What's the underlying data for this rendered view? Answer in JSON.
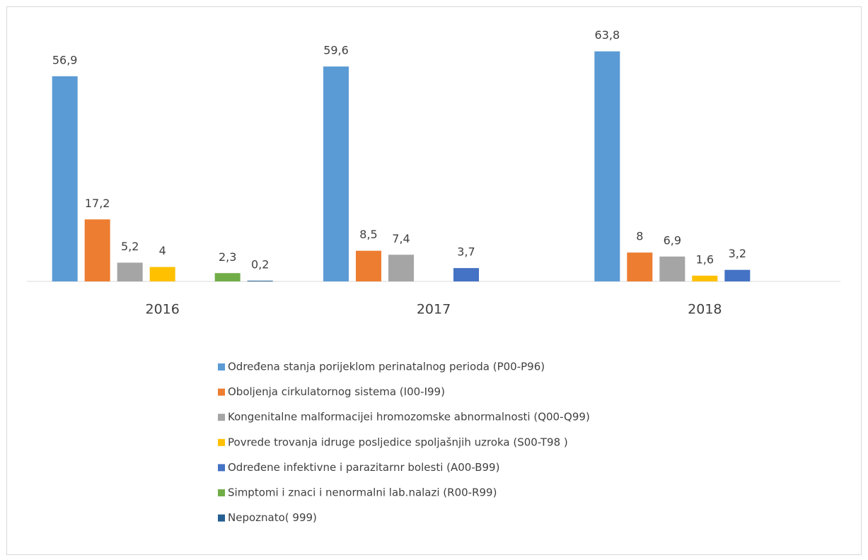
{
  "chart_data": {
    "type": "bar",
    "categories": [
      "2016",
      "2017",
      "2018"
    ],
    "series": [
      {
        "name": "Određena stanja porijeklom perinatalnog perioda  (P00-P96)",
        "color": "#5b9bd5",
        "values": [
          56.9,
          59.6,
          63.8
        ],
        "value_labels": [
          "56,9",
          "59,6",
          "63,8"
        ]
      },
      {
        "name": "Oboljenja cirkulatornog sistema (I00-I99)",
        "color": "#ed7d31",
        "values": [
          17.2,
          8.5,
          8
        ],
        "value_labels": [
          "17,2",
          "8,5",
          "8"
        ]
      },
      {
        "name": "Kongenitalne malformacijei hromozomske abnormalnosti  (Q00-Q99)",
        "color": "#a5a5a5",
        "values": [
          5.2,
          7.4,
          6.9
        ],
        "value_labels": [
          "5,2",
          "7,4",
          "6,9"
        ]
      },
      {
        "name": "Povrede trovanja idruge posljedice spoljašnjih uzroka (S00-T98 )",
        "color": "#ffc000",
        "values": [
          4,
          null,
          1.6
        ],
        "value_labels": [
          "4",
          null,
          "1,6"
        ]
      },
      {
        "name": "Određene infektivne i parazitarnr bolesti  (A00-B99)",
        "color": "#4472c4",
        "values": [
          null,
          3.7,
          3.2
        ],
        "value_labels": [
          null,
          "3,7",
          "3,2"
        ]
      },
      {
        "name": "Simptomi i znaci i nenormalni lab.nalazi (R00-R99)",
        "color": "#70ad47",
        "values": [
          2.3,
          null,
          null
        ],
        "value_labels": [
          "2,3",
          null,
          null
        ]
      },
      {
        "name": "Nepoznato( 999)",
        "color": "#255e91",
        "values": [
          0.2,
          null,
          null
        ],
        "value_labels": [
          "0,2",
          null,
          null
        ]
      }
    ]
  }
}
